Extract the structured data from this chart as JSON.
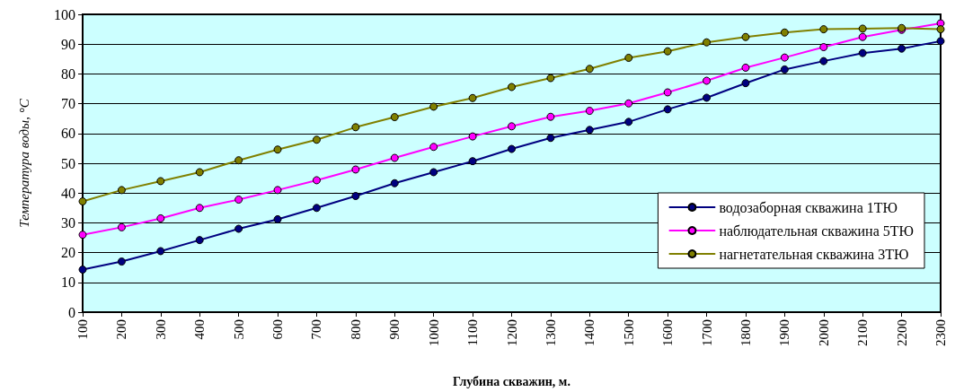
{
  "chart_data": {
    "type": "line",
    "xlabel": "Глубина скважин, м.",
    "ylabel": "Температура воды, °С",
    "x": [
      100,
      200,
      300,
      400,
      500,
      600,
      700,
      800,
      900,
      1000,
      1100,
      1200,
      1300,
      1400,
      1500,
      1600,
      1700,
      1800,
      1900,
      2000,
      2100,
      2200,
      2300
    ],
    "series": [
      {
        "name": "водозаборная скважина 1ТЮ",
        "color": "#000080",
        "values": [
          14.3,
          17,
          20.5,
          24.2,
          28,
          31.2,
          35,
          39,
          43.3,
          47,
          50.7,
          54.8,
          58.5,
          61.2,
          63.9,
          68.1,
          72,
          76.9,
          81.5,
          84.3,
          87,
          88.5,
          91
        ]
      },
      {
        "name": "наблюдательная скважина 5ТЮ",
        "color": "#ff00ff",
        "values": [
          26,
          28.5,
          31.5,
          35,
          37.8,
          41,
          44.3,
          47.9,
          51.8,
          55.5,
          59,
          62.4,
          65.6,
          67.6,
          70.1,
          73.8,
          77.7,
          82.1,
          85.5,
          89,
          92.4,
          94.8,
          97
        ]
      },
      {
        "name": "нагнетательная скважина 3ТЮ",
        "color": "#808000",
        "values": [
          37.2,
          41,
          44,
          47,
          51,
          54.6,
          57.9,
          62.1,
          65.5,
          69,
          71.9,
          75.6,
          78.6,
          81.7,
          85.4,
          87.6,
          90.6,
          92.4,
          93.9,
          95,
          95.2,
          95.4,
          95
        ]
      }
    ],
    "xlim": [
      100,
      2300
    ],
    "xticks": [
      100,
      200,
      300,
      400,
      500,
      600,
      700,
      800,
      900,
      1000,
      1100,
      1200,
      1300,
      1400,
      1500,
      1600,
      1700,
      1800,
      1900,
      2000,
      2100,
      2200,
      2300
    ],
    "ylim": [
      0,
      100
    ],
    "yticks": [
      0,
      10,
      20,
      30,
      40,
      50,
      60,
      70,
      80,
      90,
      100
    ],
    "grid": "y",
    "legend": "right",
    "marker": "circle",
    "line_style": "solid"
  }
}
